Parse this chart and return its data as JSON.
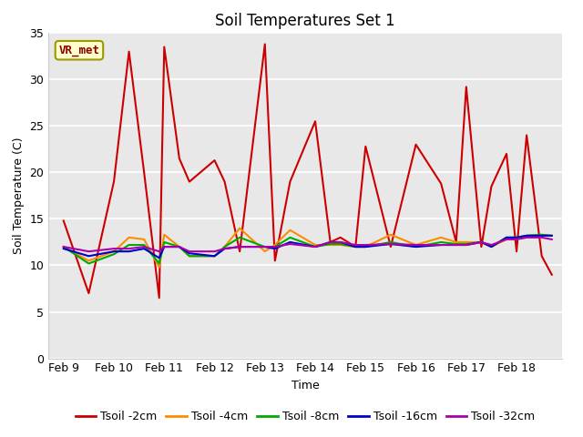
{
  "title": "Soil Temperatures Set 1",
  "xlabel": "Time",
  "ylabel": "Soil Temperature (C)",
  "annotation_label": "VR_met",
  "ylim": [
    0,
    35
  ],
  "yticks": [
    0,
    5,
    10,
    15,
    20,
    25,
    30,
    35
  ],
  "x_labels": [
    "Feb 9",
    "Feb 10",
    "Feb 11",
    "Feb 12",
    "Feb 13",
    "Feb 14",
    "Feb 15",
    "Feb 16",
    "Feb 17",
    "Feb 18"
  ],
  "series": {
    "Tsoil -2cm": {
      "color": "#cc0000",
      "x": [
        0,
        0.5,
        1.0,
        1.3,
        1.6,
        1.9,
        2.0,
        2.3,
        2.5,
        3.0,
        3.2,
        3.5,
        4.0,
        4.2,
        4.5,
        5.0,
        5.3,
        5.5,
        5.8,
        6.0,
        6.5,
        7.0,
        7.5,
        7.8,
        8.0,
        8.3,
        8.5,
        8.8,
        9.0,
        9.2,
        9.5,
        9.7
      ],
      "values": [
        14.8,
        7.0,
        19.0,
        33.0,
        20.0,
        6.5,
        33.5,
        21.5,
        19.0,
        21.3,
        19.0,
        11.5,
        33.8,
        10.5,
        19.0,
        25.5,
        12.5,
        13.0,
        12.0,
        22.8,
        12.0,
        23.0,
        18.8,
        12.5,
        29.2,
        12.0,
        18.5,
        22.0,
        11.5,
        24.0,
        11.0,
        9.0
      ],
      "lw": 1.5
    },
    "Tsoil -4cm": {
      "color": "#ff8c00",
      "x": [
        0,
        0.5,
        1.0,
        1.3,
        1.6,
        1.9,
        2.0,
        2.3,
        2.5,
        3.0,
        3.2,
        3.5,
        4.0,
        4.2,
        4.5,
        5.0,
        5.3,
        5.5,
        5.8,
        6.0,
        6.5,
        7.0,
        7.5,
        7.8,
        8.0,
        8.3,
        8.5,
        8.8,
        9.0,
        9.2,
        9.5,
        9.7
      ],
      "values": [
        12.0,
        10.5,
        11.5,
        13.0,
        12.8,
        9.8,
        13.3,
        12.0,
        11.0,
        11.0,
        12.0,
        14.0,
        11.5,
        12.2,
        13.8,
        12.2,
        12.2,
        12.2,
        12.0,
        12.0,
        13.3,
        12.2,
        13.0,
        12.5,
        12.5,
        12.5,
        12.0,
        12.8,
        12.8,
        13.2,
        13.2,
        13.2
      ],
      "lw": 1.5
    },
    "Tsoil -8cm": {
      "color": "#00aa00",
      "x": [
        0,
        0.5,
        1.0,
        1.3,
        1.6,
        1.9,
        2.0,
        2.3,
        2.5,
        3.0,
        3.2,
        3.5,
        4.0,
        4.2,
        4.5,
        5.0,
        5.3,
        5.5,
        5.8,
        6.0,
        6.5,
        7.0,
        7.5,
        7.8,
        8.0,
        8.3,
        8.5,
        8.8,
        9.0,
        9.2,
        9.5,
        9.7
      ],
      "values": [
        12.0,
        10.2,
        11.2,
        12.2,
        12.2,
        10.2,
        12.5,
        12.0,
        11.0,
        11.0,
        12.0,
        13.0,
        12.0,
        12.0,
        13.0,
        12.0,
        12.3,
        12.3,
        12.0,
        12.0,
        12.5,
        12.0,
        12.5,
        12.3,
        12.3,
        12.5,
        12.0,
        13.0,
        13.0,
        13.2,
        13.3,
        13.2
      ],
      "lw": 1.5
    },
    "Tsoil -16cm": {
      "color": "#0000cc",
      "x": [
        0,
        0.5,
        1.0,
        1.3,
        1.6,
        1.9,
        2.0,
        2.3,
        2.5,
        3.0,
        3.2,
        3.5,
        4.0,
        4.2,
        4.5,
        5.0,
        5.3,
        5.5,
        5.8,
        6.0,
        6.5,
        7.0,
        7.5,
        7.8,
        8.0,
        8.3,
        8.5,
        8.8,
        9.0,
        9.2,
        9.5,
        9.7
      ],
      "values": [
        11.8,
        11.0,
        11.5,
        11.5,
        11.8,
        10.8,
        12.0,
        12.0,
        11.3,
        11.0,
        11.8,
        12.0,
        12.0,
        11.8,
        12.5,
        12.0,
        12.5,
        12.5,
        12.0,
        12.0,
        12.3,
        12.0,
        12.2,
        12.2,
        12.2,
        12.5,
        12.0,
        13.0,
        13.0,
        13.2,
        13.2,
        13.2
      ],
      "lw": 1.5
    },
    "Tsoil -32cm": {
      "color": "#aa00aa",
      "x": [
        0,
        0.5,
        1.0,
        1.3,
        1.6,
        1.9,
        2.0,
        2.3,
        2.5,
        3.0,
        3.2,
        3.5,
        4.0,
        4.2,
        4.5,
        5.0,
        5.3,
        5.5,
        5.8,
        6.0,
        6.5,
        7.0,
        7.5,
        7.8,
        8.0,
        8.3,
        8.5,
        8.8,
        9.0,
        9.2,
        9.5,
        9.7
      ],
      "values": [
        12.0,
        11.5,
        11.8,
        11.8,
        12.0,
        11.5,
        12.0,
        12.0,
        11.5,
        11.5,
        11.8,
        12.0,
        12.0,
        12.0,
        12.3,
        12.0,
        12.5,
        12.5,
        12.2,
        12.2,
        12.3,
        12.2,
        12.2,
        12.2,
        12.2,
        12.5,
        12.2,
        12.8,
        12.8,
        13.0,
        13.0,
        12.8
      ],
      "lw": 1.5
    }
  },
  "fig_bg": "#ffffff",
  "plot_bg": "#e8e8e8",
  "grid_color": "#ffffff",
  "title_fontsize": 12,
  "label_fontsize": 9,
  "tick_fontsize": 9,
  "legend_fontsize": 9,
  "annot_text_color": "#8b0000",
  "annot_face": "#ffffcc",
  "annot_edge": "#999900"
}
